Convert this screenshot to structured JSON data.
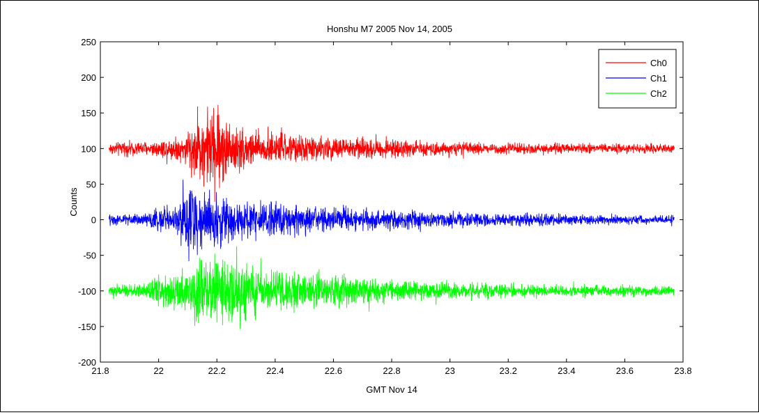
{
  "chart_data": {
    "type": "line",
    "title": "Honshu M7 2005 Nov 14, 2005",
    "xlabel": "GMT Nov 14",
    "ylabel": "Counts",
    "xlim": [
      21.8,
      23.8
    ],
    "ylim": [
      -200,
      250
    ],
    "xticks": [
      21.8,
      22,
      22.2,
      22.4,
      22.6,
      22.8,
      23,
      23.2,
      23.4,
      23.6,
      23.8
    ],
    "xtick_labels": [
      "21.8",
      "22",
      "22.2",
      "22.4",
      "22.6",
      "22.8",
      "23",
      "23.2",
      "23.4",
      "23.6",
      "23.8"
    ],
    "yticks": [
      250,
      200,
      150,
      100,
      50,
      0,
      -50,
      -100,
      -150,
      -200
    ],
    "ytick_labels": [
      "250",
      "200",
      "150",
      "100",
      "50",
      "0",
      "-50",
      "-100",
      "-150",
      "-200"
    ],
    "grid": false,
    "legend_position": "top-right",
    "x_range": [
      21.83,
      23.77
    ],
    "series": [
      {
        "name": "Ch0",
        "color": "#ff0000",
        "baseline": 100,
        "envelope": [
          [
            21.83,
            12
          ],
          [
            21.98,
            15
          ],
          [
            22.08,
            25
          ],
          [
            22.15,
            70
          ],
          [
            22.2,
            85
          ],
          [
            22.25,
            50
          ],
          [
            22.35,
            32
          ],
          [
            22.5,
            25
          ],
          [
            22.7,
            20
          ],
          [
            23.0,
            12
          ],
          [
            23.3,
            10
          ],
          [
            23.77,
            8
          ]
        ]
      },
      {
        "name": "Ch1",
        "color": "#0000ff",
        "baseline": 0,
        "envelope": [
          [
            21.83,
            10
          ],
          [
            21.97,
            12
          ],
          [
            21.99,
            28
          ],
          [
            22.05,
            22
          ],
          [
            22.1,
            65
          ],
          [
            22.15,
            55
          ],
          [
            22.2,
            48
          ],
          [
            22.3,
            35
          ],
          [
            22.5,
            28
          ],
          [
            22.7,
            22
          ],
          [
            23.0,
            14
          ],
          [
            23.3,
            12
          ],
          [
            23.77,
            8
          ]
        ]
      },
      {
        "name": "Ch2",
        "color": "#00ff00",
        "baseline": -100,
        "envelope": [
          [
            21.83,
            10
          ],
          [
            21.97,
            14
          ],
          [
            21.99,
            32
          ],
          [
            22.05,
            30
          ],
          [
            22.12,
            55
          ],
          [
            22.18,
            70
          ],
          [
            22.25,
            58
          ],
          [
            22.35,
            42
          ],
          [
            22.5,
            35
          ],
          [
            22.7,
            25
          ],
          [
            23.0,
            15
          ],
          [
            23.3,
            12
          ],
          [
            23.77,
            10
          ]
        ]
      }
    ]
  }
}
